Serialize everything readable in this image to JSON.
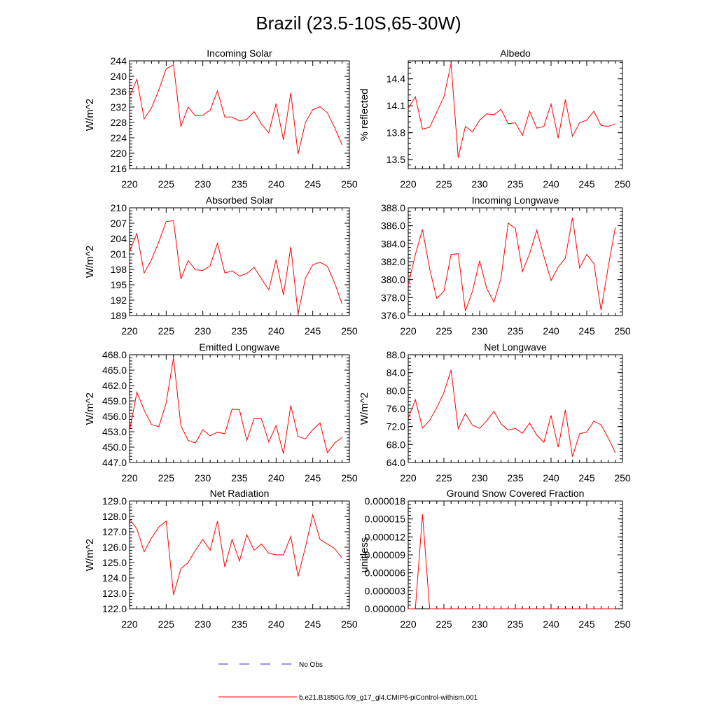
{
  "figure": {
    "title": "Brazil (23.5-10S,65-30W)"
  },
  "legend": {
    "obs_label": "No Obs",
    "obs_color": "#3333cc",
    "model_label": "b.e21.B1850G.f09_g17_gl4.CMIP6-piControl-withism.001",
    "model_color": "#ff0000"
  },
  "chart_data": [
    {
      "type": "line",
      "title": "Incoming Solar",
      "ylabel": "W/m^2",
      "xlim": [
        220,
        250
      ],
      "ylim": [
        216,
        244
      ],
      "xticks": [
        220,
        225,
        230,
        235,
        240,
        245,
        250
      ],
      "yticks": [
        216,
        220,
        224,
        228,
        232,
        236,
        240,
        244
      ],
      "ytick_labels": [
        "216",
        "220",
        "224",
        "228",
        "232",
        "236",
        "240",
        "244"
      ],
      "series": [
        {
          "x": [
            220,
            221,
            222,
            223,
            224,
            225,
            226,
            227,
            228,
            229,
            230,
            231,
            232,
            233,
            234,
            235,
            236,
            237,
            238,
            239,
            240,
            241,
            242,
            243,
            244,
            245,
            246,
            247,
            248,
            249
          ],
          "y": [
            234.8,
            239.2,
            228.9,
            231.8,
            236.5,
            241.9,
            243.0,
            226.9,
            232.0,
            229.7,
            229.9,
            231.2,
            236.2,
            229.4,
            229.4,
            228.4,
            228.8,
            230.8,
            227.6,
            225.3,
            232.9,
            223.5,
            235.7,
            219.8,
            228.0,
            231.3,
            232.1,
            230.5,
            226.6,
            222.2
          ]
        }
      ]
    },
    {
      "type": "line",
      "title": "Albedo",
      "ylabel": "% reflected",
      "xlim": [
        220,
        250
      ],
      "ylim": [
        13.4,
        14.6
      ],
      "xticks": [
        220,
        225,
        230,
        235,
        240,
        245,
        250
      ],
      "yticks": [
        13.5,
        13.8,
        14.1,
        14.4
      ],
      "ytick_labels": [
        "13.5",
        "13.8",
        "14.1",
        "14.4"
      ],
      "series": [
        {
          "x": [
            220,
            221,
            222,
            223,
            224,
            225,
            226,
            227,
            228,
            229,
            230,
            231,
            232,
            233,
            234,
            235,
            236,
            237,
            238,
            239,
            240,
            241,
            242,
            243,
            244,
            245,
            246,
            247,
            248,
            249
          ],
          "y": [
            14.07,
            14.2,
            13.84,
            13.86,
            14.03,
            14.2,
            14.57,
            13.52,
            13.87,
            13.81,
            13.94,
            14.01,
            14.0,
            14.06,
            13.9,
            13.91,
            13.77,
            14.04,
            13.85,
            13.87,
            14.12,
            13.74,
            14.17,
            13.76,
            13.91,
            13.94,
            14.04,
            13.88,
            13.87,
            13.9
          ]
        }
      ]
    },
    {
      "type": "line",
      "title": "Absorbed Solar",
      "ylabel": "W/m^2",
      "xlim": [
        220,
        250
      ],
      "ylim": [
        189,
        210
      ],
      "xticks": [
        220,
        225,
        230,
        235,
        240,
        245,
        250
      ],
      "yticks": [
        189,
        192,
        195,
        198,
        201,
        204,
        207,
        210
      ],
      "ytick_labels": [
        "189",
        "192",
        "195",
        "198",
        "201",
        "204",
        "207",
        "210"
      ],
      "series": [
        {
          "x": [
            220,
            221,
            222,
            223,
            224,
            225,
            226,
            227,
            228,
            229,
            230,
            231,
            232,
            233,
            234,
            235,
            236,
            237,
            238,
            239,
            240,
            241,
            242,
            243,
            244,
            245,
            246,
            247,
            248,
            249
          ],
          "y": [
            201.5,
            205.0,
            197.3,
            199.9,
            203.4,
            207.3,
            207.5,
            196.1,
            199.7,
            197.9,
            197.8,
            198.7,
            203.1,
            197.3,
            197.7,
            196.7,
            197.2,
            198.4,
            196.2,
            194.0,
            199.9,
            193.0,
            202.4,
            189.3,
            196.3,
            198.9,
            199.4,
            198.6,
            195.3,
            191.3
          ]
        }
      ]
    },
    {
      "type": "line",
      "title": "Incoming Longwave",
      "ylabel": "",
      "xlim": [
        220,
        250
      ],
      "ylim": [
        376,
        388
      ],
      "xticks": [
        220,
        225,
        230,
        235,
        240,
        245,
        250
      ],
      "yticks": [
        376,
        378,
        380,
        382,
        384,
        386,
        388
      ],
      "ytick_labels": [
        "376.0",
        "378.0",
        "380.0",
        "382.0",
        "384.0",
        "386.0",
        "388.0"
      ],
      "series": [
        {
          "x": [
            220,
            221,
            222,
            223,
            224,
            225,
            226,
            227,
            228,
            229,
            230,
            231,
            232,
            233,
            234,
            235,
            236,
            237,
            238,
            239,
            240,
            241,
            242,
            243,
            244,
            245,
            246,
            247,
            248,
            249
          ],
          "y": [
            379.4,
            382.8,
            385.6,
            381.2,
            377.9,
            378.7,
            382.8,
            382.9,
            376.5,
            378.7,
            382.1,
            379.0,
            377.5,
            380.2,
            386.3,
            385.7,
            380.9,
            382.9,
            385.5,
            382.6,
            379.9,
            381.4,
            382.4,
            386.9,
            381.3,
            382.8,
            381.8,
            376.6,
            381.4,
            385.8
          ]
        }
      ]
    },
    {
      "type": "line",
      "title": "Emitted Longwave",
      "ylabel": "W/m^2",
      "xlim": [
        220,
        250
      ],
      "ylim": [
        447,
        468
      ],
      "xticks": [
        220,
        225,
        230,
        235,
        240,
        245,
        250
      ],
      "yticks": [
        447,
        450,
        453,
        456,
        459,
        462,
        465,
        468
      ],
      "ytick_labels": [
        "447.0",
        "450.0",
        "453.0",
        "456.0",
        "459.0",
        "462.0",
        "465.0",
        "468.0"
      ],
      "series": [
        {
          "x": [
            220,
            221,
            222,
            223,
            224,
            225,
            226,
            227,
            228,
            229,
            230,
            231,
            232,
            233,
            234,
            235,
            236,
            237,
            238,
            239,
            240,
            241,
            242,
            243,
            244,
            245,
            246,
            247,
            248,
            249
          ],
          "y": [
            453.2,
            460.7,
            457.2,
            454.4,
            454.0,
            458.6,
            467.4,
            454.2,
            451.3,
            450.8,
            453.4,
            452.2,
            452.9,
            452.6,
            457.4,
            457.3,
            451.3,
            455.6,
            455.5,
            451.0,
            454.2,
            448.7,
            458.1,
            452.1,
            451.6,
            453.4,
            454.7,
            448.9,
            450.8,
            451.9
          ]
        }
      ]
    },
    {
      "type": "line",
      "title": "Net Longwave",
      "ylabel": "W/m^2",
      "xlim": [
        220,
        250
      ],
      "ylim": [
        64,
        88
      ],
      "xticks": [
        220,
        225,
        230,
        235,
        240,
        245,
        250
      ],
      "yticks": [
        64,
        68,
        72,
        76,
        80,
        84,
        88
      ],
      "ytick_labels": [
        "64.0",
        "68.0",
        "72.0",
        "76.0",
        "80.0",
        "84.0",
        "88.0"
      ],
      "series": [
        {
          "x": [
            220,
            221,
            222,
            223,
            224,
            225,
            226,
            227,
            228,
            229,
            230,
            231,
            232,
            233,
            234,
            235,
            236,
            237,
            238,
            239,
            240,
            241,
            242,
            243,
            244,
            245,
            246,
            247,
            248,
            249
          ],
          "y": [
            73.9,
            78.0,
            71.7,
            73.4,
            76.2,
            79.6,
            84.6,
            71.5,
            74.9,
            72.3,
            71.6,
            73.3,
            75.4,
            72.6,
            71.2,
            71.6,
            70.5,
            72.8,
            70.1,
            68.5,
            74.5,
            67.4,
            75.7,
            65.3,
            70.4,
            70.8,
            73.2,
            72.4,
            69.5,
            66.2
          ]
        }
      ]
    },
    {
      "type": "line",
      "title": "Net Radiation",
      "ylabel": "W/m^2",
      "xlim": [
        220,
        250
      ],
      "ylim": [
        122,
        129
      ],
      "xticks": [
        220,
        225,
        230,
        235,
        240,
        245,
        250
      ],
      "yticks": [
        122,
        123,
        124,
        125,
        126,
        127,
        128,
        129
      ],
      "ytick_labels": [
        "122.0",
        "123.0",
        "124.0",
        "125.0",
        "126.0",
        "127.0",
        "128.0",
        "129.0"
      ],
      "series": [
        {
          "x": [
            220,
            221,
            222,
            223,
            224,
            225,
            226,
            227,
            228,
            229,
            230,
            231,
            232,
            233,
            234,
            235,
            236,
            237,
            238,
            239,
            240,
            241,
            242,
            243,
            244,
            245,
            246,
            247,
            248,
            249
          ],
          "y": [
            127.8,
            127.2,
            125.7,
            126.6,
            127.3,
            127.7,
            122.9,
            124.6,
            125.0,
            125.8,
            126.5,
            125.8,
            127.7,
            124.7,
            126.5,
            125.1,
            126.8,
            125.8,
            126.2,
            125.6,
            125.5,
            125.5,
            126.7,
            124.1,
            126.0,
            128.1,
            126.5,
            126.2,
            125.9,
            125.3
          ]
        }
      ]
    },
    {
      "type": "line",
      "title": "Ground Snow Covered Fraction",
      "ylabel": "unitless",
      "xlim": [
        220,
        250
      ],
      "ylim": [
        0,
        1.8e-05
      ],
      "xticks": [
        220,
        225,
        230,
        235,
        240,
        245,
        250
      ],
      "yticks": [
        0,
        3e-06,
        6e-06,
        9e-06,
        1.2e-05,
        1.5e-05,
        1.8e-05
      ],
      "ytick_labels": [
        "0.000000",
        "0.000003",
        "0.000006",
        "0.000009",
        "0.000012",
        "0.000015",
        "0.000018"
      ],
      "series": [
        {
          "x": [
            220,
            221,
            222,
            223,
            224,
            225,
            226,
            227,
            228,
            229,
            230,
            231,
            232,
            233,
            234,
            235,
            236,
            237,
            238,
            239,
            240,
            241,
            242,
            243,
            244,
            245,
            246,
            247,
            248,
            249
          ],
          "y": [
            0,
            0,
            1.58e-05,
            0,
            0,
            0,
            0,
            0,
            0,
            0,
            0,
            0,
            0,
            0,
            0,
            0,
            0,
            0,
            0,
            0,
            0,
            0,
            0,
            0,
            0,
            0,
            0,
            0,
            0,
            0
          ]
        }
      ]
    }
  ]
}
